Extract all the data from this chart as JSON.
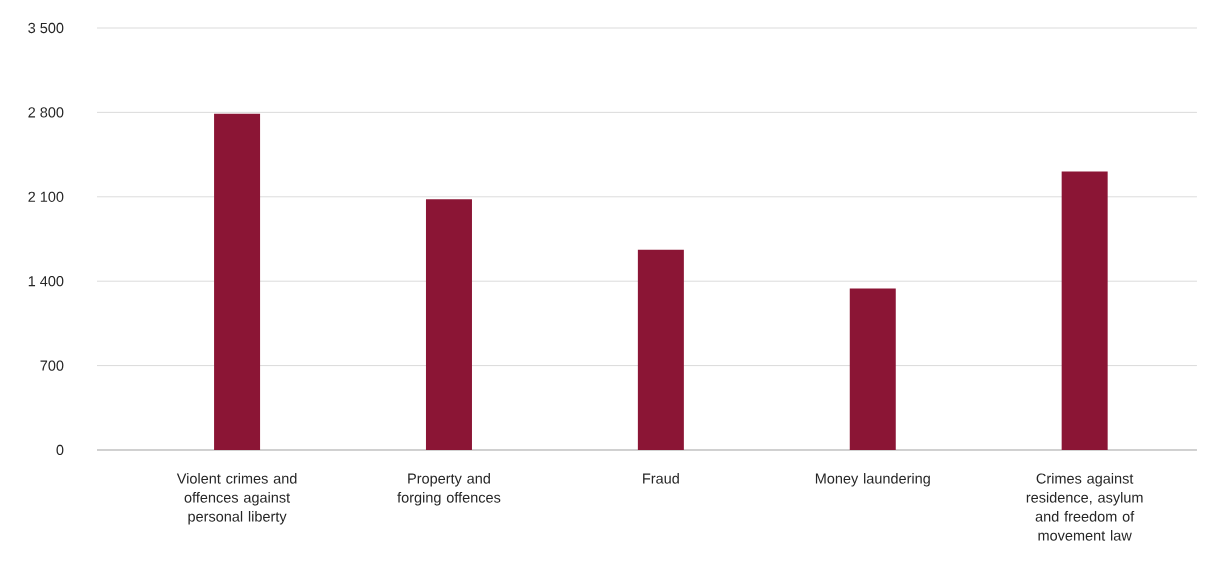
{
  "chart_data": {
    "type": "bar",
    "categories": [
      "Violent crimes and offences against personal liberty",
      "Property and forging offences",
      "Fraud",
      "Money laundering",
      "Crimes against residence, asylum and freedom of movement law"
    ],
    "values": [
      2790,
      2080,
      1660,
      1340,
      2310
    ],
    "color": "#8b1535",
    "ylim": [
      0,
      3500
    ],
    "yticks": [
      0,
      700,
      {
        "value": 1400,
        "label": "1 400"
      },
      {
        "value": 2100,
        "label": "2 100"
      },
      {
        "value": 2800,
        "label": "2 800"
      },
      {
        "value": 3500,
        "label": "3 500"
      }
    ],
    "grid": "y"
  }
}
